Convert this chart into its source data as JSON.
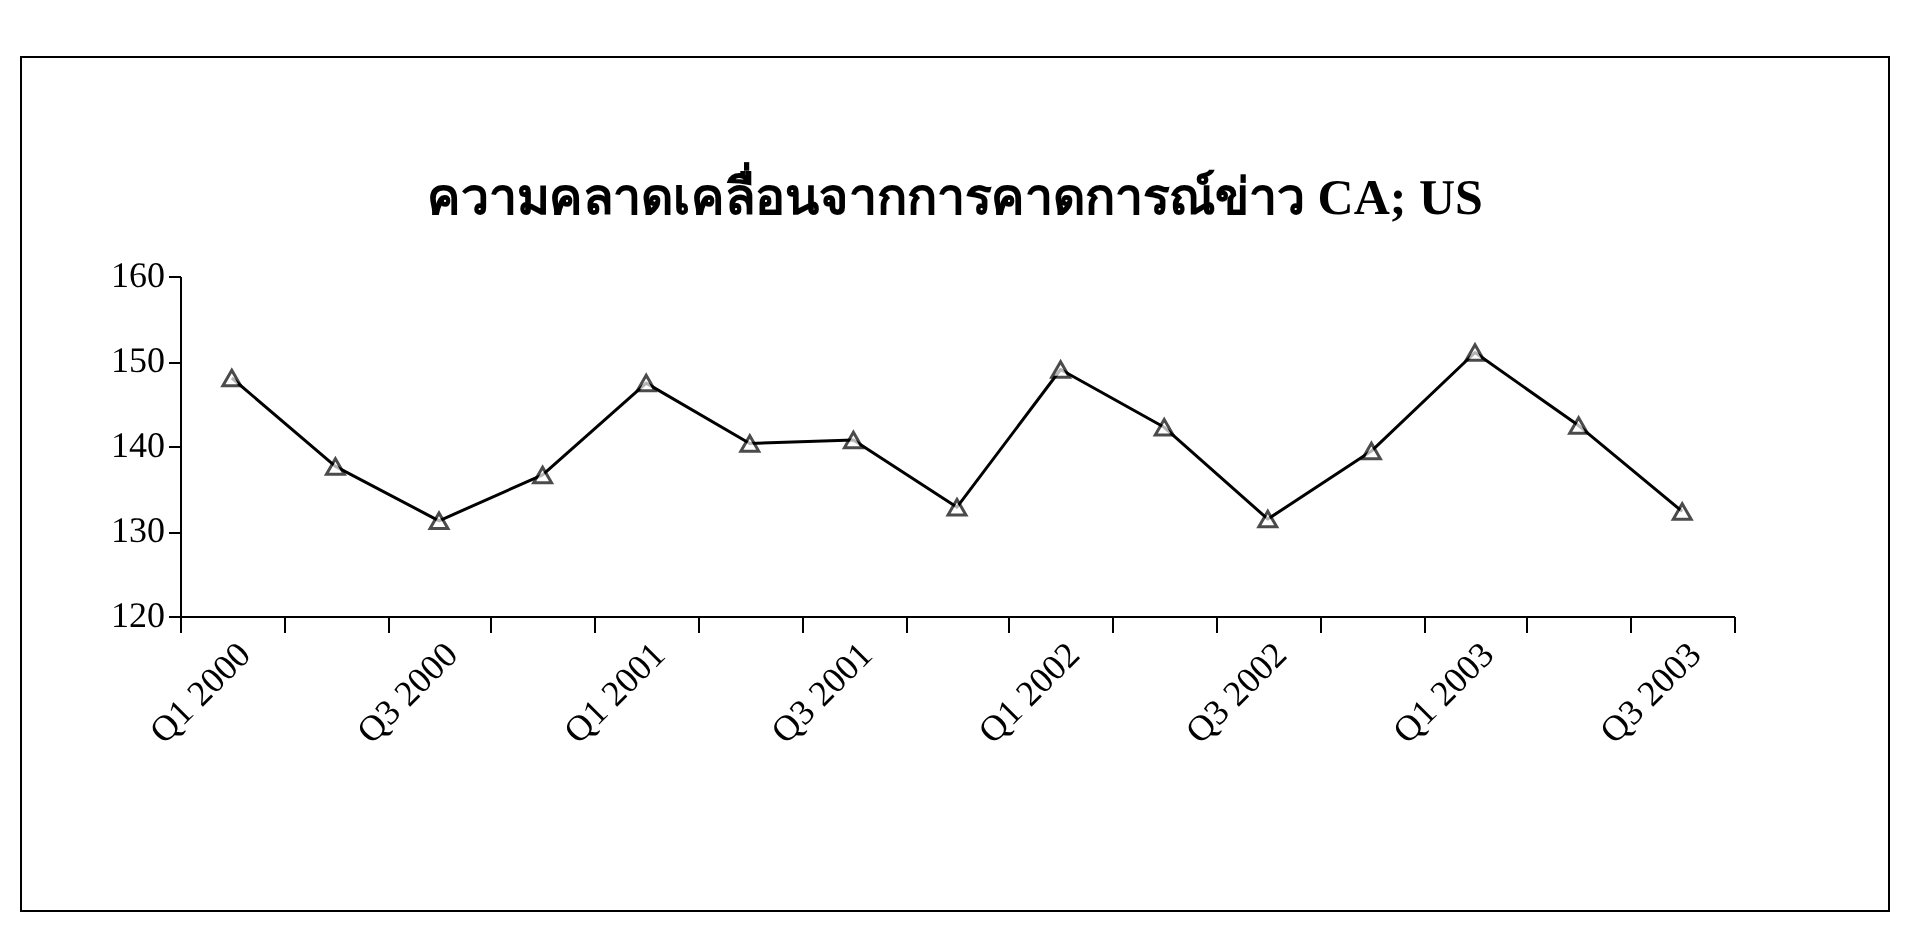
{
  "chart_data": {
    "type": "line",
    "title": "ความคลาดเคลื่อนจากการคาดการณ์ข่าว CA; US",
    "categories": [
      "Q1 2000",
      null,
      "Q3 2000",
      null,
      "Q1 2001",
      null,
      "Q3 2001",
      null,
      "Q1 2002",
      null,
      "Q3 2002",
      null,
      "Q1 2003",
      null,
      "Q3 2003"
    ],
    "series": [
      {
        "color": "#000000",
        "values": [
          148,
          137.6,
          131.2,
          136.6,
          147.4,
          140.3,
          140.7,
          132.8,
          149,
          142.2,
          131.4,
          139.4,
          151,
          142.4,
          132.3
        ]
      }
    ],
    "ylim": [
      120,
      160
    ],
    "yticks": [
      120,
      130,
      140,
      150,
      160
    ],
    "grid": false,
    "legend": false,
    "marker": "triangle",
    "line_style": "solid"
  }
}
